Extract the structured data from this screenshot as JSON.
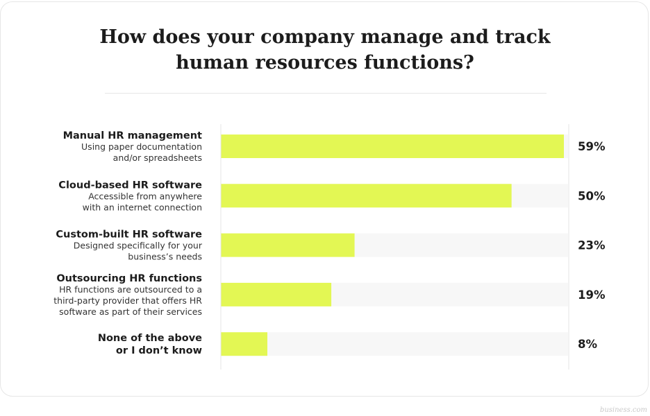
{
  "title_lines": [
    "How does your company manage and track",
    "human resources functions?"
  ],
  "footer": "business.com",
  "colors": {
    "bar": "#e3f754",
    "track": "#f7f7f7",
    "axis": "#e6e6e6",
    "text": "#1c1c1c"
  },
  "chart_data": {
    "type": "bar",
    "orientation": "horizontal",
    "title": "How does your company manage and track human resources functions?",
    "categories": [
      {
        "title": [
          "Manual HR management"
        ],
        "subtitle": [
          "Using paper documentation",
          "and/or spreadsheets"
        ],
        "value": 59,
        "label": "59%"
      },
      {
        "title": [
          "Cloud-based HR software"
        ],
        "subtitle": [
          "Accessible from anywhere",
          "with an internet connection"
        ],
        "value": 50,
        "label": "50%"
      },
      {
        "title": [
          "Custom-built HR software"
        ],
        "subtitle": [
          "Designed specifically for your",
          "business’s needs"
        ],
        "value": 23,
        "label": "23%"
      },
      {
        "title": [
          "Outsourcing HR functions"
        ],
        "subtitle": [
          "HR functions are outsourced to a",
          "third-party provider that offers HR",
          "software as part of their services"
        ],
        "value": 19,
        "label": "19%"
      },
      {
        "title": [
          "None of the above",
          "or I don’t know"
        ],
        "subtitle": [],
        "value": 8,
        "label": "8%"
      }
    ],
    "xlim": [
      0,
      59
    ],
    "grid": false,
    "legend": "none"
  }
}
